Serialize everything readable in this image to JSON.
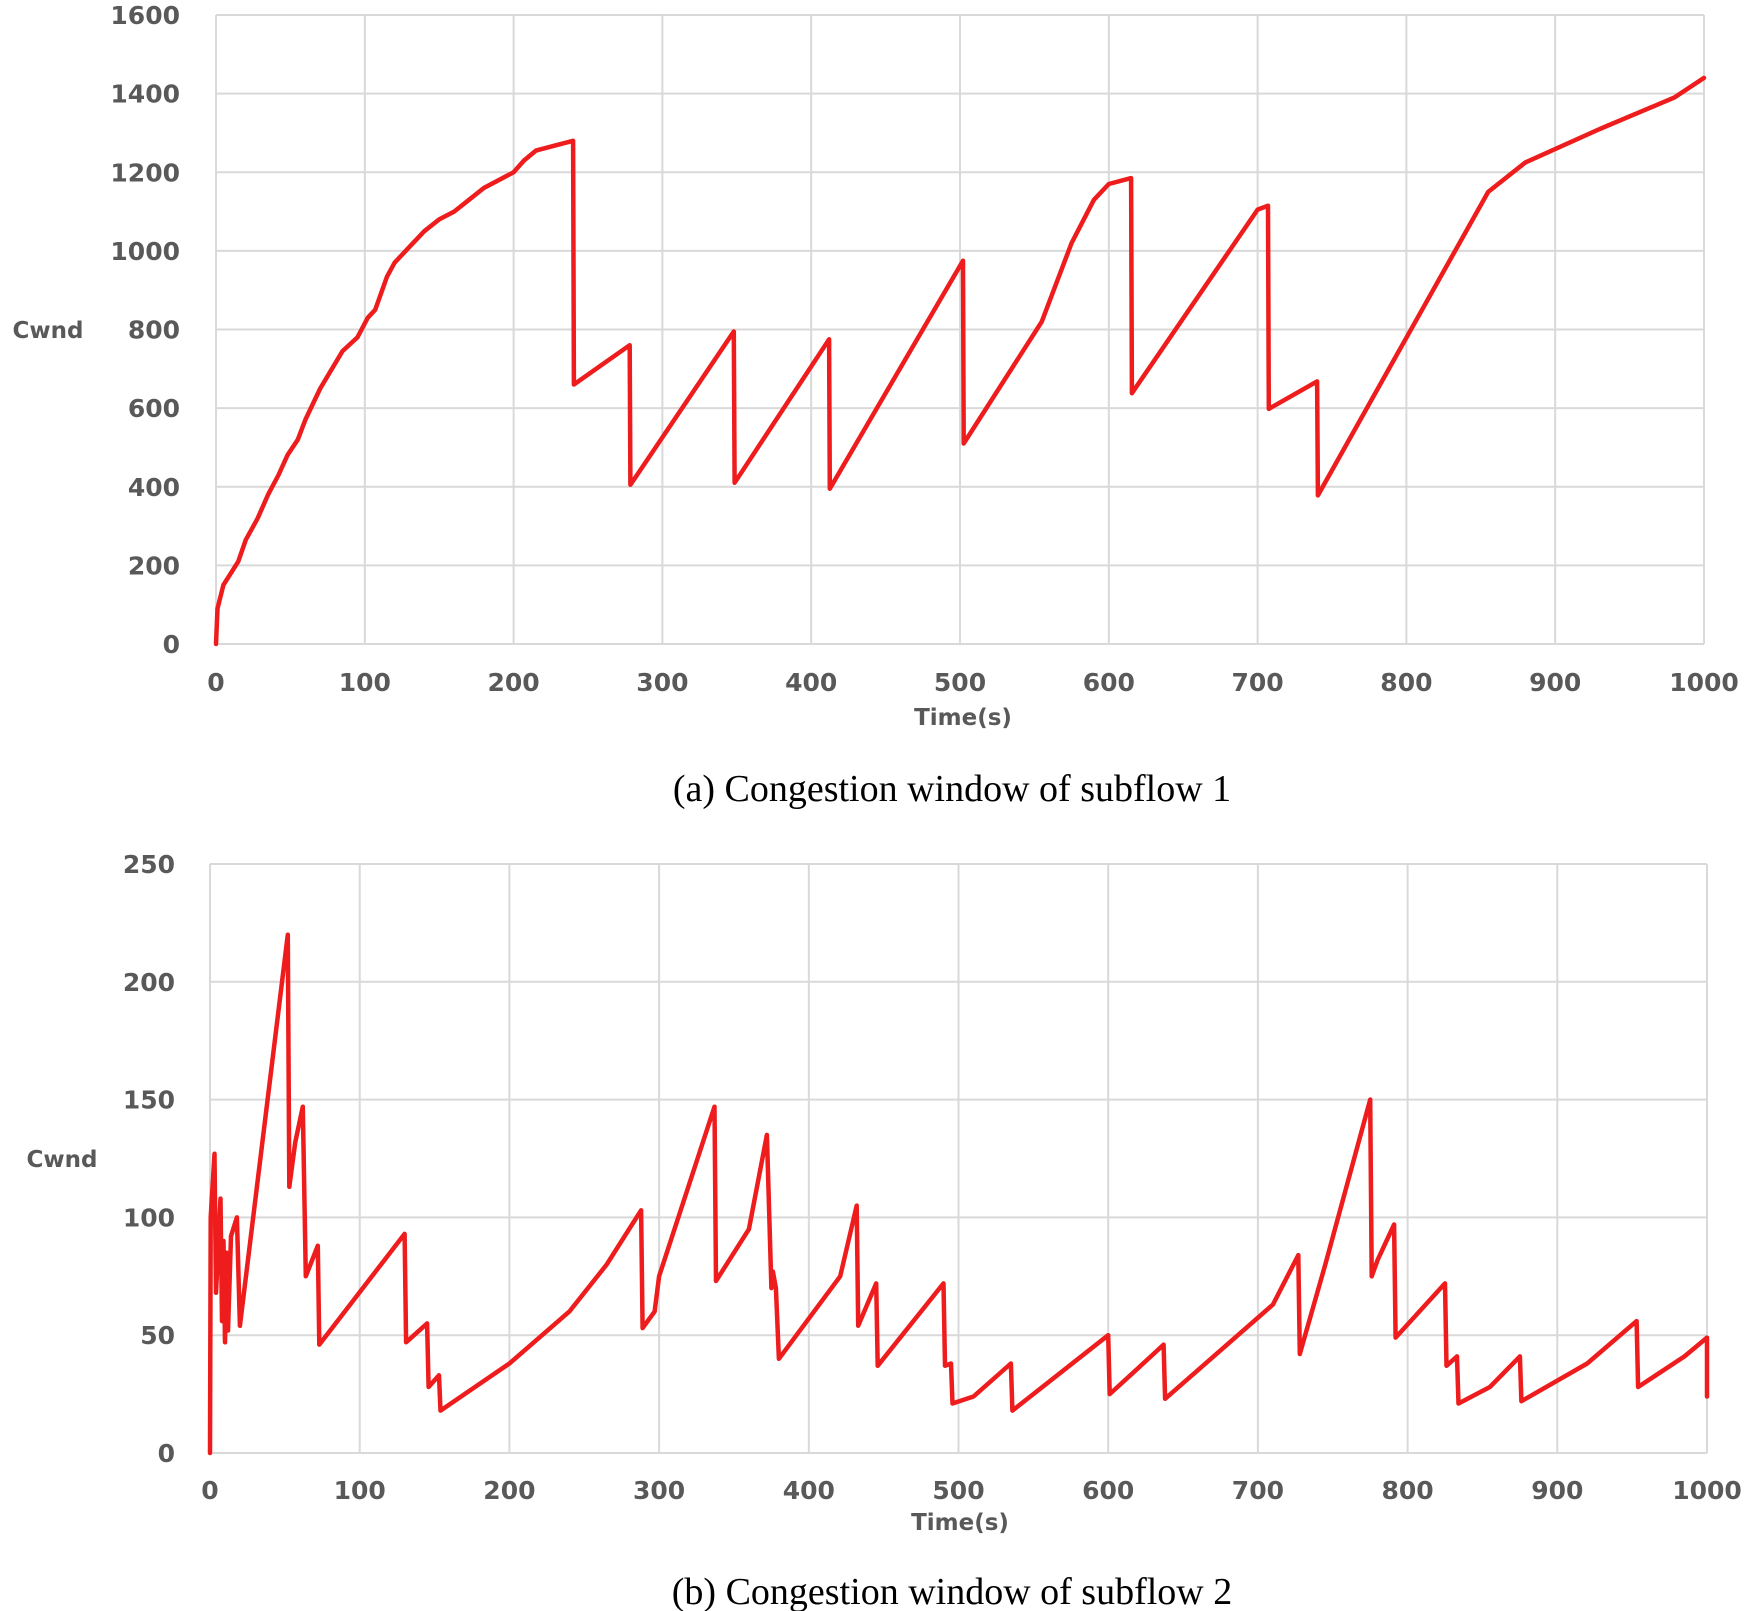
{
  "colors": {
    "series": "#ee1c1c",
    "grid": "#d9d9d9",
    "tick_text": "#595959",
    "caption": "#000000"
  },
  "chart_data": [
    {
      "type": "line",
      "caption": "(a) Congestion window of subflow 1",
      "xlabel": "Time(s)",
      "ylabel": "Cwnd",
      "xlim": [
        0,
        1000
      ],
      "ylim": [
        0,
        1600
      ],
      "xticks": [
        0,
        100,
        200,
        300,
        400,
        500,
        600,
        700,
        800,
        900,
        1000
      ],
      "yticks": [
        0,
        200,
        400,
        600,
        800,
        1000,
        1200,
        1400,
        1600
      ],
      "grid": true,
      "series": [
        {
          "name": "subflow 1",
          "x": [
            0,
            1,
            5,
            15,
            20,
            28,
            35,
            42,
            48,
            55,
            60,
            70,
            85,
            95,
            102,
            107,
            115,
            120,
            130,
            140,
            150,
            160,
            170,
            180,
            190,
            200,
            207,
            215,
            230,
            240,
            240.5,
            278,
            278.5,
            348,
            348.5,
            412,
            412.5,
            502,
            502.5,
            555,
            575,
            590,
            600,
            615,
            615.5,
            700,
            707,
            707.5,
            740,
            740.5,
            855,
            880,
            930,
            980,
            1000
          ],
          "y": [
            0,
            90,
            150,
            210,
            265,
            320,
            380,
            430,
            480,
            520,
            570,
            650,
            745,
            780,
            830,
            850,
            935,
            970,
            1010,
            1050,
            1080,
            1100,
            1130,
            1160,
            1180,
            1200,
            1230,
            1255,
            1270,
            1280,
            660,
            760,
            405,
            795,
            410,
            775,
            395,
            975,
            510,
            820,
            1020,
            1130,
            1170,
            1185,
            638,
            1105,
            1115,
            598,
            668,
            378,
            1150,
            1225,
            1310,
            1390,
            1440
          ]
        }
      ]
    },
    {
      "type": "line",
      "caption": "(b) Congestion window of subflow 2",
      "xlabel": "Time(s)",
      "ylabel": "Cwnd",
      "xlim": [
        0,
        1000
      ],
      "ylim": [
        0,
        250
      ],
      "xticks": [
        0,
        100,
        200,
        300,
        400,
        500,
        600,
        700,
        800,
        900,
        1000
      ],
      "yticks": [
        0,
        50,
        100,
        150,
        200,
        250
      ],
      "grid": true,
      "series": [
        {
          "name": "subflow 2",
          "x": [
            0,
            0.5,
            3,
            4,
            7,
            8,
            9,
            10,
            11,
            12,
            14,
            18,
            20,
            52,
            53,
            57,
            62,
            64,
            72,
            73,
            130,
            131,
            145,
            146,
            153,
            154,
            200,
            240,
            265,
            288,
            289,
            297,
            300,
            337,
            338,
            360,
            372,
            375,
            376,
            378,
            380,
            421,
            432,
            433,
            445,
            446,
            490,
            491,
            495,
            496,
            510,
            535,
            536,
            600,
            601,
            620,
            637,
            638,
            710,
            727,
            728,
            745,
            775,
            776,
            780,
            791,
            792,
            825,
            826,
            833,
            834,
            855,
            875,
            876,
            920,
            953,
            954,
            985,
            1000,
            1001
          ],
          "y": [
            0,
            100,
            127,
            68,
            108,
            56,
            90,
            47,
            85,
            52,
            92,
            100,
            54,
            220,
            113,
            132,
            147,
            75,
            88,
            46,
            93,
            47,
            55,
            28,
            33,
            18,
            38,
            60,
            80,
            103,
            53,
            60,
            75,
            147,
            73,
            95,
            135,
            70,
            77,
            70,
            40,
            75,
            105,
            54,
            72,
            37,
            72,
            37,
            38,
            21,
            24,
            38,
            18,
            50,
            25,
            36,
            46,
            23,
            63,
            84,
            42,
            80,
            150,
            75,
            82,
            97,
            49,
            72,
            37,
            41,
            21,
            28,
            41,
            22,
            38,
            56,
            28,
            41,
            49,
            24
          ]
        }
      ]
    }
  ]
}
